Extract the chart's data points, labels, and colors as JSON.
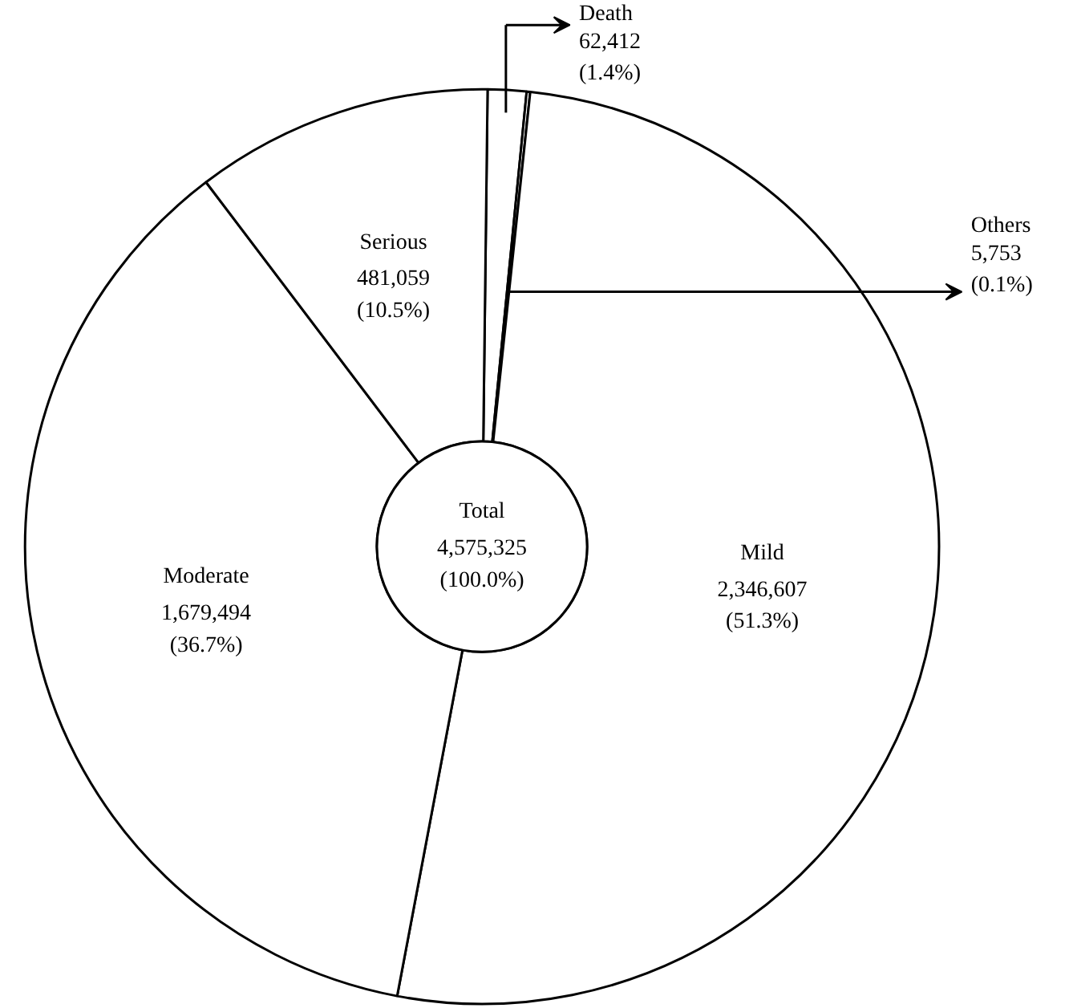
{
  "chart_data": {
    "type": "donut",
    "categories": [
      "Death",
      "Others",
      "Mild",
      "Moderate",
      "Serious"
    ],
    "values": [
      62412,
      5753,
      2346607,
      1679494,
      481059
    ],
    "colors": [
      "#ffffff",
      "#ffffff",
      "#ffffff",
      "#ffffff",
      "#ffffff"
    ],
    "value_labels": [
      "62,412\n(1.4%)",
      "5,753\n(0.1%)",
      "2,346,607\n(51.3%)",
      "1,679,494\n(36.7%)",
      "481,059\n(10.5%)"
    ],
    "annotations": [
      "Total\n4,575,325\n(100.0%)"
    ]
  }
}
